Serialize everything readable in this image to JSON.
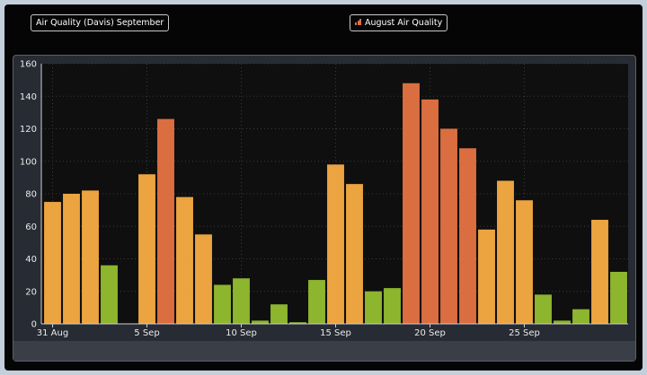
{
  "title_button": "Air Quality (Davis) September",
  "legend_button": "August Air Quality",
  "colors": {
    "good": "#8db52e",
    "moderate": "#eba440",
    "unhealthy_sensitive": "#db6e40",
    "plot_background": "#0f0f0f",
    "panel": "#272b33"
  },
  "chart_data": {
    "type": "bar",
    "ylim": [
      0,
      160
    ],
    "y_ticks": [
      "0",
      "20",
      "40",
      "60",
      "80",
      "100",
      "120",
      "140",
      "160"
    ],
    "x_ticks": [
      "31 Aug",
      "5 Sep",
      "10 Sep",
      "15 Sep",
      "20 Sep",
      "25 Sep"
    ],
    "x_tick_day_index": [
      0,
      5,
      10,
      15,
      20,
      25
    ],
    "grid": true,
    "bars": [
      {
        "value": 75,
        "level": "moderate"
      },
      {
        "value": 80,
        "level": "moderate"
      },
      {
        "value": 82,
        "level": "moderate"
      },
      {
        "value": 36,
        "level": "good"
      },
      {
        "value": null,
        "level": null
      },
      {
        "value": 92,
        "level": "moderate"
      },
      {
        "value": 126,
        "level": "unhealthy_sensitive"
      },
      {
        "value": 78,
        "level": "moderate"
      },
      {
        "value": 55,
        "level": "moderate"
      },
      {
        "value": 24,
        "level": "good"
      },
      {
        "value": 28,
        "level": "good"
      },
      {
        "value": 2,
        "level": "good"
      },
      {
        "value": 12,
        "level": "good"
      },
      {
        "value": 1,
        "level": "good"
      },
      {
        "value": 27,
        "level": "good"
      },
      {
        "value": 98,
        "level": "moderate"
      },
      {
        "value": 86,
        "level": "moderate"
      },
      {
        "value": 20,
        "level": "good"
      },
      {
        "value": 22,
        "level": "good"
      },
      {
        "value": 148,
        "level": "unhealthy_sensitive"
      },
      {
        "value": 138,
        "level": "unhealthy_sensitive"
      },
      {
        "value": 120,
        "level": "unhealthy_sensitive"
      },
      {
        "value": 108,
        "level": "unhealthy_sensitive"
      },
      {
        "value": 58,
        "level": "moderate"
      },
      {
        "value": 88,
        "level": "moderate"
      },
      {
        "value": 76,
        "level": "moderate"
      },
      {
        "value": 18,
        "level": "good"
      },
      {
        "value": 2,
        "level": "good"
      },
      {
        "value": 9,
        "level": "good"
      },
      {
        "value": 64,
        "level": "moderate"
      },
      {
        "value": 32,
        "level": "good"
      }
    ]
  }
}
